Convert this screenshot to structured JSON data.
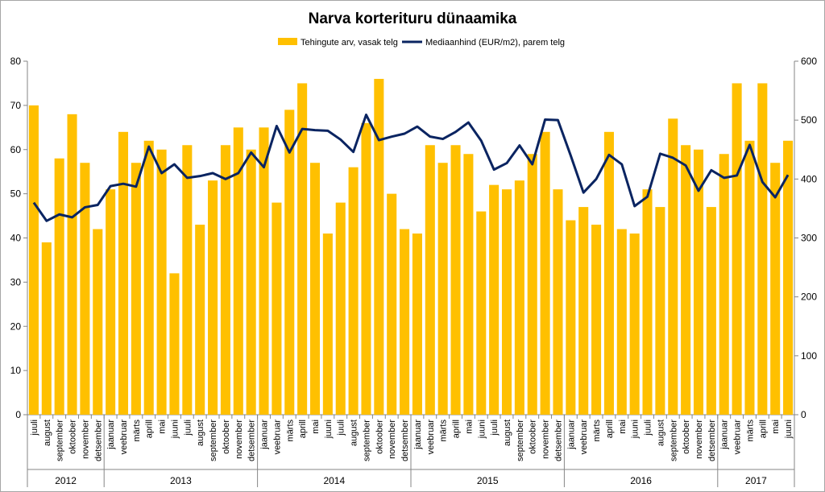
{
  "chart_data": {
    "type": "bar",
    "title": "Narva korterituru dünaamika",
    "categories": [
      "juuli",
      "august",
      "september",
      "oktoober",
      "november",
      "detsember",
      "jaanuar",
      "veebruar",
      "märts",
      "aprill",
      "mai",
      "juuni",
      "juuli",
      "august",
      "september",
      "oktoober",
      "november",
      "detsember",
      "jaanuar",
      "veebruar",
      "märts",
      "aprill",
      "mai",
      "juuni",
      "juuli",
      "august",
      "september",
      "oktoober",
      "november",
      "detsember",
      "jaanuar",
      "veebruar",
      "märts",
      "aprill",
      "mai",
      "juuni",
      "juuli",
      "august",
      "september",
      "oktoober",
      "november",
      "detsember",
      "jaanuar",
      "veebruar",
      "märts",
      "aprill",
      "mai",
      "juuni",
      "juuli",
      "august",
      "september",
      "oktoober",
      "november",
      "detsember",
      "jaanuar",
      "veebruar",
      "märts",
      "aprill",
      "mai",
      "juuni"
    ],
    "years": [
      {
        "label": "2012",
        "start": 0,
        "count": 6
      },
      {
        "label": "2013",
        "start": 6,
        "count": 12
      },
      {
        "label": "2014",
        "start": 18,
        "count": 12
      },
      {
        "label": "2015",
        "start": 30,
        "count": 12
      },
      {
        "label": "2016",
        "start": 42,
        "count": 12
      },
      {
        "label": "2017",
        "start": 54,
        "count": 6
      }
    ],
    "series": [
      {
        "name": "Tehingute arv, vasak telg",
        "type": "bar",
        "axis": "left",
        "color": "#ffc000",
        "values": [
          70,
          39,
          58,
          68,
          57,
          42,
          51,
          64,
          57,
          62,
          60,
          32,
          61,
          43,
          53,
          61,
          65,
          60,
          65,
          48,
          69,
          75,
          57,
          41,
          48,
          56,
          66,
          76,
          50,
          42,
          41,
          61,
          57,
          61,
          59,
          46,
          52,
          51,
          53,
          59,
          64,
          51,
          44,
          47,
          43,
          64,
          42,
          41,
          51,
          47,
          67,
          61,
          60,
          47,
          59,
          75,
          62,
          75,
          57,
          62
        ]
      },
      {
        "name": "Mediaanhind (EUR/m2), parem telg",
        "type": "line",
        "axis": "right",
        "color": "#0a2461",
        "values": [
          360,
          329,
          340,
          335,
          352,
          356,
          388,
          392,
          387,
          455,
          410,
          425,
          402,
          405,
          410,
          400,
          410,
          445,
          420,
          490,
          445,
          485,
          483,
          482,
          467,
          446,
          509,
          466,
          472,
          477,
          489,
          472,
          468,
          480,
          496,
          465,
          416,
          427,
          457,
          425,
          501,
          500,
          440,
          377,
          400,
          441,
          425,
          354,
          370,
          443,
          436,
          423,
          380,
          415,
          402,
          406,
          458,
          395,
          369,
          407
        ]
      }
    ],
    "y_left": {
      "min": 0,
      "max": 80,
      "step": 10
    },
    "y_right": {
      "min": 0,
      "max": 600,
      "step": 100
    },
    "legend_position": "top",
    "grid": false
  }
}
